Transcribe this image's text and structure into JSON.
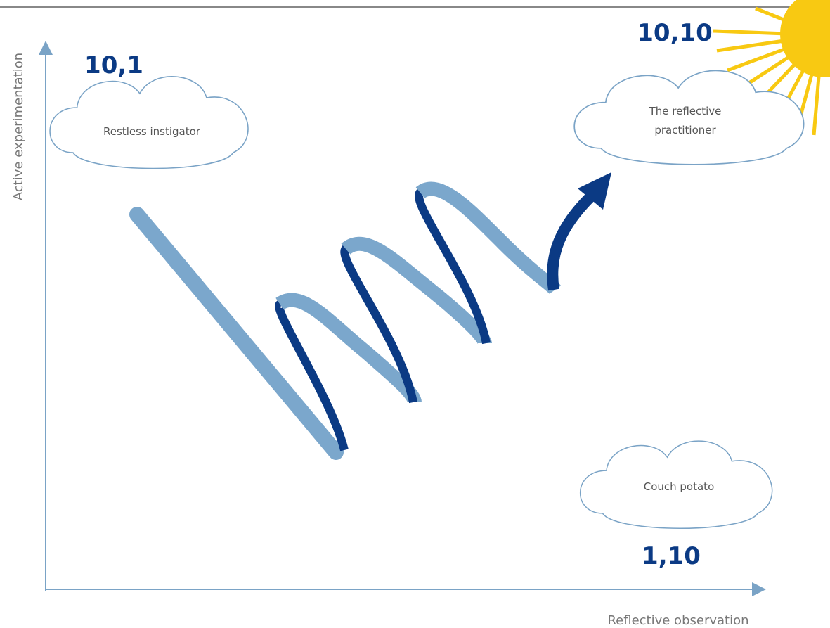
{
  "diagram": {
    "y_axis_label": "Active experimentation",
    "x_axis_label": "Reflective observation",
    "nodes": [
      {
        "coord": "10,1",
        "label": "Restless instigator"
      },
      {
        "coord": "10,10",
        "label": [
          "The reflective",
          "practitioner"
        ]
      },
      {
        "coord": "1,10",
        "label": "Couch potato"
      }
    ]
  }
}
